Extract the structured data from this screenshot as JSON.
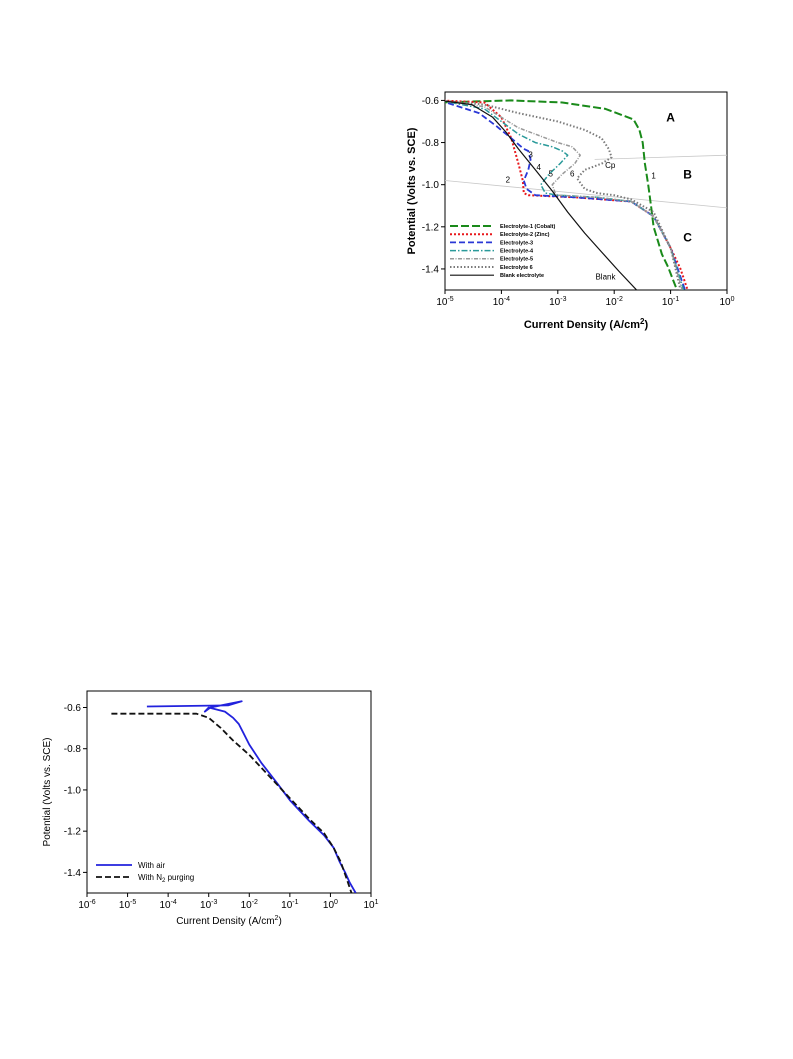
{
  "chart_data": [
    {
      "type": "line",
      "xlabel": "Current Density (A/cm2)",
      "ylabel": "Potential (Volts vs. SCE)",
      "xscale": "log",
      "xlim": [
        1e-05,
        1
      ],
      "ylim": [
        -1.5,
        -0.56
      ],
      "xticks": [
        {
          "v": 1e-05,
          "b": "10",
          "e": "-5"
        },
        {
          "v": 0.0001,
          "b": "10",
          "e": "-4"
        },
        {
          "v": 0.001,
          "b": "10",
          "e": "-3"
        },
        {
          "v": 0.01,
          "b": "10",
          "e": "-2"
        },
        {
          "v": 0.1,
          "b": "10",
          "e": "-1"
        },
        {
          "v": 1,
          "b": "10",
          "e": "0"
        }
      ],
      "yticks": [
        -0.6,
        -0.8,
        -1.0,
        -1.2,
        -1.4
      ],
      "legend_position": "bottom-left",
      "series": [
        {
          "name": "Electrolyte-1 (Cobalt)",
          "color": "#1a8a1a",
          "dash": "8,3",
          "width": 2,
          "x": [
            8e-06,
            0.00015,
            0.0012,
            0.007,
            0.022,
            0.028,
            0.032,
            0.035,
            0.04,
            0.045,
            0.05,
            0.06,
            0.07,
            0.09,
            0.11,
            0.13
          ],
          "y": [
            -0.61,
            -0.6,
            -0.61,
            -0.64,
            -0.69,
            -0.74,
            -0.8,
            -0.9,
            -1.0,
            -1.1,
            -1.2,
            -1.27,
            -1.33,
            -1.39,
            -1.45,
            -1.5
          ]
        },
        {
          "name": "Electrolyte-2 (Zinc)",
          "color": "#e8181c",
          "dash": "2,2",
          "width": 2,
          "x": [
            8e-06,
            5e-05,
            0.0001,
            0.00015,
            0.0002,
            0.00024,
            0.00025,
            0.0003,
            0.002,
            0.02,
            0.05,
            0.1,
            0.15,
            0.2
          ],
          "y": [
            -0.6,
            -0.61,
            -0.68,
            -0.78,
            -0.9,
            -0.98,
            -1.04,
            -1.05,
            -1.06,
            -1.08,
            -1.15,
            -1.3,
            -1.4,
            -1.5
          ]
        },
        {
          "name": "Electrolyte-3",
          "color": "#2a38d6",
          "dash": "6,3",
          "width": 1.8,
          "x": [
            8e-06,
            4e-05,
            8e-05,
            0.00015,
            0.00025,
            0.0003,
            0.00033,
            0.0003,
            0.00025,
            0.00028,
            0.0004,
            0.002,
            0.02,
            0.05,
            0.1,
            0.18
          ],
          "y": [
            -0.6,
            -0.66,
            -0.72,
            -0.78,
            -0.83,
            -0.84,
            -0.88,
            -0.93,
            -0.98,
            -1.02,
            -1.05,
            -1.06,
            -1.08,
            -1.15,
            -1.3,
            -1.5
          ]
        },
        {
          "name": "Electrolyte-4",
          "color": "#2a9a9a",
          "dash": "6,2,1.5,2",
          "width": 1.5,
          "x": [
            8e-06,
            5e-05,
            0.0001,
            0.0002,
            0.0004,
            0.0008,
            0.0012,
            0.0015,
            0.0011,
            0.0007,
            0.0005,
            0.0006,
            0.001,
            0.005,
            0.02,
            0.05,
            0.1,
            0.17
          ],
          "y": [
            -0.6,
            -0.64,
            -0.7,
            -0.76,
            -0.8,
            -0.82,
            -0.84,
            -0.86,
            -0.9,
            -0.95,
            -1.0,
            -1.04,
            -1.05,
            -1.06,
            -1.08,
            -1.15,
            -1.3,
            -1.5
          ]
        },
        {
          "name": "Electrolyte-5",
          "color": "#9a9a9a",
          "dash": "4,1.5,1,1.5",
          "width": 1.5,
          "x": [
            8e-06,
            5e-05,
            0.0001,
            0.0002,
            0.0005,
            0.001,
            0.0018,
            0.0025,
            0.002,
            0.0012,
            0.0008,
            0.0009,
            0.001,
            0.005,
            0.02,
            0.05,
            0.1,
            0.16
          ],
          "y": [
            -0.6,
            -0.63,
            -0.68,
            -0.73,
            -0.77,
            -0.8,
            -0.82,
            -0.86,
            -0.9,
            -0.95,
            -1.0,
            -1.04,
            -1.05,
            -1.06,
            -1.08,
            -1.15,
            -1.3,
            -1.5
          ]
        },
        {
          "name": "Electrolyte 6",
          "color": "#7a7a7a",
          "dash": "1.5,2",
          "width": 2,
          "x": [
            8e-06,
            5e-05,
            0.0002,
            0.001,
            0.003,
            0.006,
            0.008,
            0.009,
            0.006,
            0.003,
            0.0022,
            0.003,
            0.005,
            0.01,
            0.02,
            0.05,
            0.1,
            0.15
          ],
          "y": [
            -0.6,
            -0.62,
            -0.66,
            -0.7,
            -0.74,
            -0.78,
            -0.83,
            -0.87,
            -0.9,
            -0.93,
            -0.97,
            -1.02,
            -1.04,
            -1.05,
            -1.07,
            -1.13,
            -1.3,
            -1.5
          ]
        },
        {
          "name": "Blank electrolyte",
          "color": "#111111",
          "dash": "",
          "width": 1.2,
          "x": [
            8e-06,
            3e-05,
            7e-05,
            0.00012,
            0.0002,
            0.0004,
            0.0008,
            0.0015,
            0.003,
            0.006,
            0.012,
            0.025
          ],
          "y": [
            -0.6,
            -0.62,
            -0.68,
            -0.75,
            -0.83,
            -0.93,
            -1.03,
            -1.13,
            -1.23,
            -1.32,
            -1.41,
            -1.5
          ]
        }
      ],
      "annotations": [
        {
          "text": "A",
          "x": 0.1,
          "y": -0.7,
          "style": "region"
        },
        {
          "text": "B",
          "x": 0.2,
          "y": -0.97,
          "style": "region"
        },
        {
          "text": "C",
          "x": 0.2,
          "y": -1.27,
          "style": "region"
        },
        {
          "text": "Cp",
          "x": 0.0085,
          "y": -0.92,
          "style": "curve"
        },
        {
          "text": "1",
          "x": 0.05,
          "y": -0.97,
          "style": "curve"
        },
        {
          "text": "2",
          "x": 0.00013,
          "y": -0.99,
          "style": "curve"
        },
        {
          "text": "3",
          "x": 0.00033,
          "y": -0.87,
          "style": "curve"
        },
        {
          "text": "4",
          "x": 0.00046,
          "y": -0.93,
          "style": "curve"
        },
        {
          "text": "5",
          "x": 0.00075,
          "y": -0.96,
          "style": "curve"
        },
        {
          "text": "6",
          "x": 0.0018,
          "y": -0.96,
          "style": "curve"
        },
        {
          "text": "Blank",
          "x": 0.007,
          "y": -1.45,
          "style": "curve"
        }
      ],
      "boundary_lines": [
        {
          "x": [
            0.0045,
            1
          ],
          "y": [
            -0.88,
            -0.86
          ]
        },
        {
          "x": [
            1e-05,
            1
          ],
          "y": [
            -0.98,
            -1.11
          ]
        }
      ]
    },
    {
      "type": "line",
      "xlabel": "Current Density (A/cm2)",
      "ylabel": "Potential (Volts vs. SCE)",
      "xscale": "log",
      "xlim": [
        1e-06,
        10
      ],
      "ylim": [
        -1.5,
        -0.52
      ],
      "xticks": [
        {
          "v": 1e-06,
          "b": "10",
          "e": "-6"
        },
        {
          "v": 1e-05,
          "b": "10",
          "e": "-5"
        },
        {
          "v": 0.0001,
          "b": "10",
          "e": "-4"
        },
        {
          "v": 0.001,
          "b": "10",
          "e": "-3"
        },
        {
          "v": 0.01,
          "b": "10",
          "e": "-2"
        },
        {
          "v": 0.1,
          "b": "10",
          "e": "-1"
        },
        {
          "v": 1,
          "b": "10",
          "e": "0"
        },
        {
          "v": 10,
          "b": "10",
          "e": "1"
        }
      ],
      "yticks": [
        -0.6,
        -0.8,
        -1.0,
        -1.2,
        -1.4
      ],
      "legend_position": "bottom-left",
      "series": [
        {
          "name": "With air",
          "color": "#2222dd",
          "dash": "",
          "width": 1.8,
          "x": [
            3e-05,
            0.003,
            0.0065,
            0.0011,
            0.0008,
            0.001,
            0.0025,
            0.004,
            0.0055,
            0.007,
            0.01,
            0.02,
            0.05,
            0.1,
            0.3,
            0.7,
            1.2,
            1.7,
            2.3,
            3.0,
            4.2
          ],
          "y": [
            -0.595,
            -0.59,
            -0.57,
            -0.6,
            -0.62,
            -0.6,
            -0.62,
            -0.65,
            -0.68,
            -0.72,
            -0.78,
            -0.87,
            -0.97,
            -1.05,
            -1.15,
            -1.22,
            -1.28,
            -1.35,
            -1.4,
            -1.45,
            -1.5
          ]
        },
        {
          "name": "With N2 purging",
          "color": "#111111",
          "dash": "6,3",
          "width": 1.8,
          "x": [
            4e-06,
            0.0005,
            0.001,
            0.002,
            0.004,
            0.01,
            0.03,
            0.1,
            0.3,
            0.7,
            1.2,
            1.8,
            2.5,
            3.3
          ],
          "y": [
            -0.63,
            -0.63,
            -0.65,
            -0.7,
            -0.76,
            -0.83,
            -0.93,
            -1.04,
            -1.14,
            -1.21,
            -1.28,
            -1.35,
            -1.43,
            -1.5
          ]
        }
      ]
    }
  ]
}
